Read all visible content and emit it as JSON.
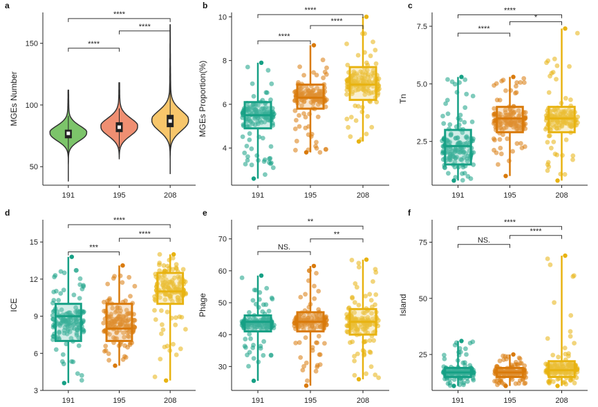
{
  "chart_data": [
    {
      "panel": "a",
      "type": "violin",
      "categories": [
        "191",
        "195",
        "208"
      ],
      "colors": [
        "#7cc46a",
        "#ef8f72",
        "#f7c66b"
      ],
      "ylabel": "MGEs Number",
      "ylim": [
        35,
        175
      ],
      "yticks": [
        50,
        100,
        150
      ],
      "stats": [
        {
          "min": 38,
          "q1": 73,
          "median": 77,
          "q3": 80,
          "max": 112,
          "mode": 77,
          "spread": 6
        },
        {
          "min": 56,
          "q1": 78,
          "median": 82,
          "q3": 86,
          "max": 118,
          "mode": 82,
          "spread": 7
        },
        {
          "min": 44,
          "q1": 82,
          "median": 87,
          "q3": 92,
          "max": 165,
          "mode": 87,
          "spread": 8
        }
      ],
      "comparisons": [
        {
          "a": 0,
          "b": 1,
          "y": 146,
          "label": "****"
        },
        {
          "a": 1,
          "b": 2,
          "y": 160,
          "label": "****"
        },
        {
          "a": 0,
          "b": 2,
          "y": 170,
          "label": "****"
        }
      ]
    },
    {
      "panel": "b",
      "type": "box_jitter",
      "categories": [
        "191",
        "195",
        "208"
      ],
      "colors": [
        "#16a085",
        "#d97a0b",
        "#e8b311"
      ],
      "ylabel": "MGEs Proportion(%)",
      "ylim": [
        2.3,
        10.2
      ],
      "yticks": [
        4,
        6,
        8,
        10
      ],
      "stats": [
        {
          "min": 2.6,
          "q1": 4.9,
          "median": 5.5,
          "q3": 6.1,
          "max": 7.9
        },
        {
          "min": 3.8,
          "q1": 5.8,
          "median": 6.3,
          "q3": 6.9,
          "max": 8.7
        },
        {
          "min": 4.3,
          "q1": 6.2,
          "median": 6.9,
          "q3": 7.7,
          "max": 10.0
        }
      ],
      "comparisons": [
        {
          "a": 0,
          "b": 1,
          "y": 8.9,
          "label": "****"
        },
        {
          "a": 1,
          "b": 2,
          "y": 9.6,
          "label": "****"
        },
        {
          "a": 0,
          "b": 2,
          "y": 10.1,
          "label": "****"
        }
      ]
    },
    {
      "panel": "c",
      "type": "box_jitter",
      "categories": [
        "191",
        "195",
        "208"
      ],
      "colors": [
        "#16a085",
        "#d97a0b",
        "#e8b311"
      ],
      "ylabel": "Tn",
      "ylim": [
        0.6,
        8.1
      ],
      "yticks": [
        2.5,
        5.0,
        7.5
      ],
      "ytick_labels": [
        "2.5",
        "5.0",
        "7.5"
      ],
      "stats": [
        {
          "min": 0.8,
          "q1": 1.5,
          "median": 2.3,
          "q3": 3.0,
          "max": 5.3
        },
        {
          "min": 1.0,
          "q1": 2.9,
          "median": 3.5,
          "q3": 4.0,
          "max": 5.3
        },
        {
          "min": 0.8,
          "q1": 2.9,
          "median": 3.5,
          "q3": 4.0,
          "max": 7.4
        }
      ],
      "comparisons": [
        {
          "a": 0,
          "b": 1,
          "y": 7.2,
          "label": "****"
        },
        {
          "a": 1,
          "b": 2,
          "y": 7.7,
          "label": "*"
        },
        {
          "a": 0,
          "b": 2,
          "y": 8.0,
          "label": "****"
        }
      ]
    },
    {
      "panel": "d",
      "type": "box_jitter",
      "categories": [
        "191",
        "195",
        "208"
      ],
      "colors": [
        "#16a085",
        "#d97a0b",
        "#e8b311"
      ],
      "ylabel": "ICE",
      "ylim": [
        3,
        16.8
      ],
      "yticks": [
        3,
        6,
        9,
        12,
        15
      ],
      "stats": [
        {
          "min": 3.6,
          "q1": 7.0,
          "median": 9.0,
          "q3": 10.0,
          "max": 13.8
        },
        {
          "min": 5.0,
          "q1": 7.0,
          "median": 8.0,
          "q3": 10.0,
          "max": 13.1
        },
        {
          "min": 3.8,
          "q1": 10.0,
          "median": 11.0,
          "q3": 12.5,
          "max": 14.0
        }
      ],
      "comparisons": [
        {
          "a": 0,
          "b": 1,
          "y": 14.2,
          "label": "***"
        },
        {
          "a": 1,
          "b": 2,
          "y": 15.3,
          "label": "****"
        },
        {
          "a": 0,
          "b": 2,
          "y": 16.4,
          "label": "****"
        }
      ]
    },
    {
      "panel": "e",
      "type": "box_jitter",
      "categories": [
        "191",
        "195",
        "208"
      ],
      "colors": [
        "#16a085",
        "#d97a0b",
        "#e8b311"
      ],
      "ylabel": "Phage",
      "ylim": [
        22.5,
        76
      ],
      "yticks": [
        30,
        40,
        50,
        60,
        70
      ],
      "stats": [
        {
          "min": 25.5,
          "q1": 41.0,
          "median": 44.0,
          "q3": 46.0,
          "max": 58.5
        },
        {
          "min": 24.0,
          "q1": 41.0,
          "median": 44.0,
          "q3": 47.0,
          "max": 61.5
        },
        {
          "min": 26.0,
          "q1": 40.0,
          "median": 44.0,
          "q3": 48.0,
          "max": 63.5
        }
      ],
      "comparisons": [
        {
          "a": 0,
          "b": 1,
          "y": 66,
          "label": "NS."
        },
        {
          "a": 1,
          "b": 2,
          "y": 70,
          "label": "**"
        },
        {
          "a": 0,
          "b": 2,
          "y": 74,
          "label": "**"
        }
      ]
    },
    {
      "panel": "f",
      "type": "box_jitter",
      "categories": [
        "191",
        "195",
        "208"
      ],
      "colors": [
        "#16a085",
        "#d97a0b",
        "#e8b311"
      ],
      "ylabel": "Island",
      "ylim": [
        9,
        85
      ],
      "yticks": [
        25,
        50,
        75
      ],
      "stats": [
        {
          "min": 11,
          "q1": 15,
          "median": 17,
          "q3": 19,
          "max": 31
        },
        {
          "min": 11,
          "q1": 15,
          "median": 17,
          "q3": 19,
          "max": 25
        },
        {
          "min": 11,
          "q1": 15,
          "median": 18,
          "q3": 22,
          "max": 69
        }
      ],
      "comparisons": [
        {
          "a": 0,
          "b": 1,
          "y": 74,
          "label": "NS."
        },
        {
          "a": 1,
          "b": 2,
          "y": 78,
          "label": "****"
        },
        {
          "a": 0,
          "b": 2,
          "y": 82,
          "label": "****"
        }
      ]
    }
  ]
}
